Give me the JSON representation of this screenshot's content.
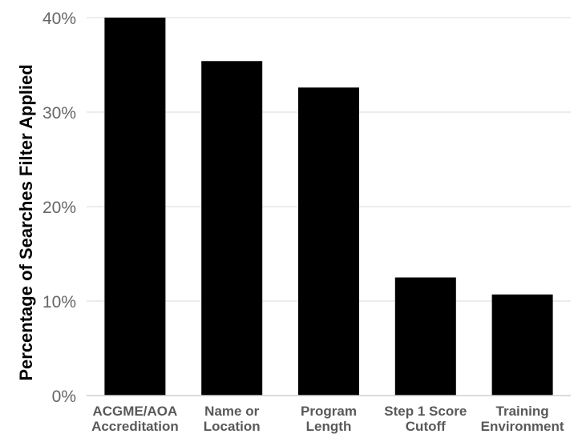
{
  "chart_data": {
    "type": "bar",
    "title": "",
    "xlabel": "",
    "ylabel": "Percentage of Searches Filter Applied",
    "categories": [
      [
        "ACGME/AOA",
        "Accreditation"
      ],
      [
        "Name or",
        "Location"
      ],
      [
        "Program",
        "Length"
      ],
      [
        "Step 1 Score",
        "Cutoff"
      ],
      [
        "Training",
        "Environment"
      ]
    ],
    "values": [
      40,
      35.4,
      32.6,
      12.5,
      10.7
    ],
    "ylim": [
      0,
      40
    ],
    "yticks": [
      0,
      10,
      20,
      30,
      40
    ],
    "ytick_labels": [
      "0%",
      "10%",
      "20%",
      "30%",
      "40%"
    ],
    "grid": true,
    "legend": "none",
    "bar_color": "#000000"
  }
}
